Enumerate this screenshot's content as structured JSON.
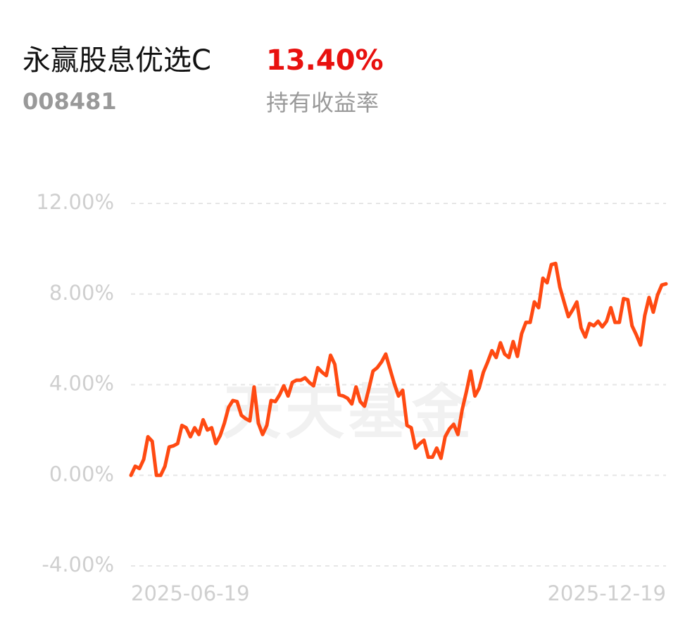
{
  "header": {
    "fund_name": "永赢股息优选C",
    "return_value": "13.40%",
    "fund_code": "008481",
    "return_label": "持有收益率"
  },
  "watermark": "天天基金",
  "chart_data": {
    "type": "line",
    "categories": [
      "2025-06-19",
      null,
      null,
      null,
      null,
      null,
      null,
      null,
      null,
      null,
      null,
      null,
      null,
      null,
      null,
      null,
      null,
      null,
      null,
      null,
      null,
      null,
      null,
      null,
      null,
      null,
      null,
      null,
      null,
      null,
      null,
      null,
      null,
      null,
      null,
      null,
      null,
      null,
      null,
      null,
      null,
      null,
      null,
      null,
      null,
      null,
      null,
      null,
      null,
      null,
      null,
      null,
      null,
      null,
      null,
      null,
      null,
      null,
      null,
      null,
      null,
      null,
      null,
      null,
      null,
      null,
      null,
      null,
      null,
      null,
      null,
      null,
      null,
      null,
      null,
      null,
      null,
      null,
      null,
      null,
      null,
      null,
      null,
      null,
      null,
      null,
      null,
      null,
      null,
      null,
      null,
      null,
      null,
      null,
      null,
      null,
      null,
      null,
      null,
      null,
      null,
      null,
      null,
      null,
      null,
      null,
      null,
      null,
      null,
      null,
      null,
      null,
      null,
      null,
      null,
      null,
      null,
      null,
      null,
      null,
      null,
      null,
      null,
      null,
      null,
      null,
      "2025-12-19"
    ],
    "series": [
      {
        "name": "持有收益率",
        "color": "#ff4a12",
        "values": [
          0,
          0.4,
          0.3,
          0.7,
          1.7,
          1.5,
          0,
          0,
          0.4,
          1.25,
          1.3,
          1.4,
          2.2,
          2.1,
          1.7,
          2.1,
          1.8,
          2.45,
          2.0,
          2.1,
          1.4,
          1.75,
          2.3,
          3.0,
          3.3,
          3.25,
          2.65,
          2.5,
          2.4,
          3.9,
          2.3,
          1.8,
          2.2,
          3.3,
          3.25,
          3.55,
          3.95,
          3.5,
          4.1,
          4.2,
          4.2,
          4.3,
          4.1,
          3.95,
          4.75,
          4.55,
          4.4,
          5.3,
          4.9,
          3.55,
          3.5,
          3.4,
          3.15,
          3.9,
          3.25,
          3.05,
          3.8,
          4.6,
          4.75,
          5.0,
          5.35,
          4.7,
          4.05,
          3.5,
          3.75,
          2.2,
          2.1,
          1.2,
          1.4,
          1.55,
          0.8,
          0.8,
          1.2,
          0.75,
          1.7,
          2.05,
          2.25,
          1.8,
          2.9,
          3.7,
          4.6,
          3.5,
          3.85,
          4.55,
          5.0,
          5.5,
          5.2,
          5.85,
          5.35,
          5.2,
          5.9,
          5.25,
          6.25,
          6.75,
          6.75,
          7.65,
          7.4,
          8.7,
          8.5,
          9.3,
          9.35,
          8.3,
          7.65,
          7.0,
          7.3,
          7.65,
          6.5,
          6.1,
          6.7,
          6.6,
          6.8,
          6.55,
          6.8,
          7.4,
          6.75,
          6.75,
          7.8,
          7.75,
          6.6,
          6.2,
          5.75,
          7.05,
          7.85,
          7.2,
          7.95,
          8.4,
          8.45
        ]
      }
    ],
    "ylim": [
      -4,
      12
    ],
    "yticks": [
      {
        "value": -4,
        "label": "-4.00%"
      },
      {
        "value": 0,
        "label": "0.00%"
      },
      {
        "value": 4,
        "label": "4.00%"
      },
      {
        "value": 8,
        "label": "8.00%"
      },
      {
        "value": 12,
        "label": "12.00%"
      }
    ],
    "grid": true
  }
}
